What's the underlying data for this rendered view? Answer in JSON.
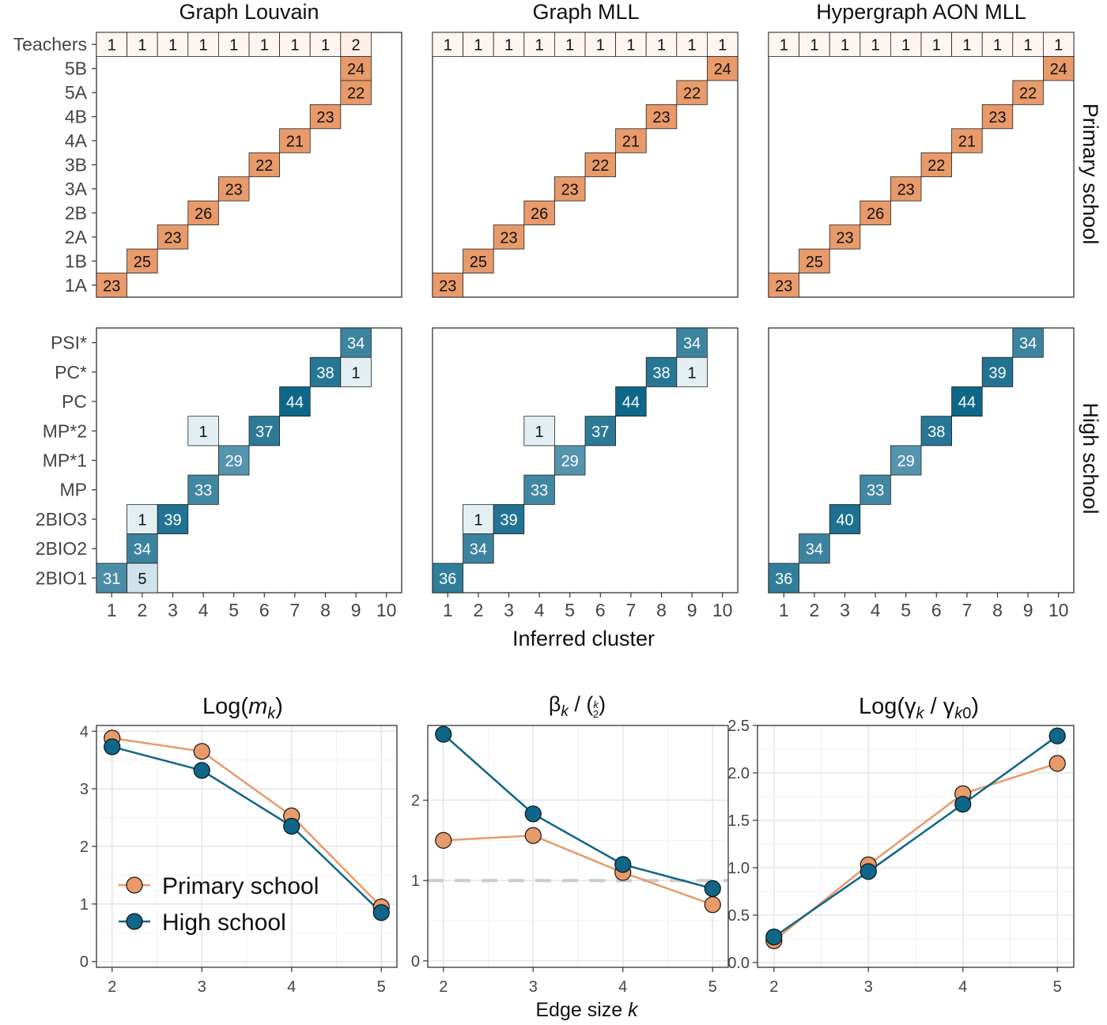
{
  "figure": {
    "top_x_label": "Inferred cluster",
    "bottom_x_label": "Edge size k"
  },
  "colors": {
    "primary": "#E89A6A",
    "high": "#0E6688",
    "panel_border": "#333333",
    "grid": "#E6E6E6",
    "reference_line": "#CCCCCC"
  },
  "chart_data": [
    {
      "type": "heatmap",
      "title": "Graph Louvain",
      "x_label": "Inferred cluster",
      "x_categories": [
        "1",
        "2",
        "3",
        "4",
        "5",
        "6",
        "7",
        "8",
        "9",
        "10"
      ],
      "rows": {
        "primary": [
          {
            "label": "Teachers",
            "cells": [
              [
                1,
                1
              ],
              [
                2,
                1
              ],
              [
                3,
                1
              ],
              [
                4,
                1
              ],
              [
                5,
                1
              ],
              [
                6,
                1
              ],
              [
                7,
                1
              ],
              [
                8,
                1
              ],
              [
                9,
                2
              ]
            ]
          },
          {
            "label": "5B",
            "cells": [
              [
                9,
                24
              ]
            ]
          },
          {
            "label": "5A",
            "cells": [
              [
                9,
                22
              ]
            ]
          },
          {
            "label": "4B",
            "cells": [
              [
                8,
                23
              ]
            ]
          },
          {
            "label": "4A",
            "cells": [
              [
                7,
                21
              ]
            ]
          },
          {
            "label": "3B",
            "cells": [
              [
                6,
                22
              ]
            ]
          },
          {
            "label": "3A",
            "cells": [
              [
                5,
                23
              ]
            ]
          },
          {
            "label": "2B",
            "cells": [
              [
                4,
                26
              ]
            ]
          },
          {
            "label": "2A",
            "cells": [
              [
                3,
                23
              ]
            ]
          },
          {
            "label": "1B",
            "cells": [
              [
                2,
                25
              ]
            ]
          },
          {
            "label": "1A",
            "cells": [
              [
                1,
                23
              ]
            ]
          }
        ],
        "high": [
          {
            "label": "PSI*",
            "cells": [
              [
                9,
                34
              ]
            ]
          },
          {
            "label": "PC*",
            "cells": [
              [
                8,
                38
              ],
              [
                9,
                1
              ]
            ]
          },
          {
            "label": "PC",
            "cells": [
              [
                7,
                44
              ]
            ]
          },
          {
            "label": "MP*2",
            "cells": [
              [
                4,
                1
              ],
              [
                6,
                37
              ]
            ]
          },
          {
            "label": "MP*1",
            "cells": [
              [
                5,
                29
              ]
            ]
          },
          {
            "label": "MP",
            "cells": [
              [
                4,
                33
              ]
            ]
          },
          {
            "label": "2BIO3",
            "cells": [
              [
                2,
                1
              ],
              [
                3,
                39
              ]
            ]
          },
          {
            "label": "2BIO2",
            "cells": [
              [
                2,
                34
              ]
            ]
          },
          {
            "label": "2BIO1",
            "cells": [
              [
                1,
                31
              ],
              [
                2,
                5
              ]
            ]
          }
        ]
      }
    },
    {
      "type": "heatmap",
      "title": "Graph MLL",
      "x_label": "Inferred cluster",
      "x_categories": [
        "1",
        "2",
        "3",
        "4",
        "5",
        "6",
        "7",
        "8",
        "9",
        "10"
      ],
      "rows": {
        "primary": [
          {
            "label": "Teachers",
            "cells": [
              [
                1,
                1
              ],
              [
                2,
                1
              ],
              [
                3,
                1
              ],
              [
                4,
                1
              ],
              [
                5,
                1
              ],
              [
                6,
                1
              ],
              [
                7,
                1
              ],
              [
                8,
                1
              ],
              [
                9,
                1
              ],
              [
                10,
                1
              ]
            ]
          },
          {
            "label": "5B",
            "cells": [
              [
                10,
                24
              ]
            ]
          },
          {
            "label": "5A",
            "cells": [
              [
                9,
                22
              ]
            ]
          },
          {
            "label": "4B",
            "cells": [
              [
                8,
                23
              ]
            ]
          },
          {
            "label": "4A",
            "cells": [
              [
                7,
                21
              ]
            ]
          },
          {
            "label": "3B",
            "cells": [
              [
                6,
                22
              ]
            ]
          },
          {
            "label": "3A",
            "cells": [
              [
                5,
                23
              ]
            ]
          },
          {
            "label": "2B",
            "cells": [
              [
                4,
                26
              ]
            ]
          },
          {
            "label": "2A",
            "cells": [
              [
                3,
                23
              ]
            ]
          },
          {
            "label": "1B",
            "cells": [
              [
                2,
                25
              ]
            ]
          },
          {
            "label": "1A",
            "cells": [
              [
                1,
                23
              ]
            ]
          }
        ],
        "high": [
          {
            "label": "PSI*",
            "cells": [
              [
                9,
                34
              ]
            ]
          },
          {
            "label": "PC*",
            "cells": [
              [
                8,
                38
              ],
              [
                9,
                1
              ]
            ]
          },
          {
            "label": "PC",
            "cells": [
              [
                7,
                44
              ]
            ]
          },
          {
            "label": "MP*2",
            "cells": [
              [
                4,
                1
              ],
              [
                6,
                37
              ]
            ]
          },
          {
            "label": "MP*1",
            "cells": [
              [
                5,
                29
              ]
            ]
          },
          {
            "label": "MP",
            "cells": [
              [
                4,
                33
              ]
            ]
          },
          {
            "label": "2BIO3",
            "cells": [
              [
                2,
                1
              ],
              [
                3,
                39
              ]
            ]
          },
          {
            "label": "2BIO2",
            "cells": [
              [
                2,
                34
              ]
            ]
          },
          {
            "label": "2BIO1",
            "cells": [
              [
                1,
                36
              ]
            ]
          }
        ]
      }
    },
    {
      "type": "heatmap",
      "title": "Hypergraph AON MLL",
      "x_label": "Inferred cluster",
      "x_categories": [
        "1",
        "2",
        "3",
        "4",
        "5",
        "6",
        "7",
        "8",
        "9",
        "10"
      ],
      "rows": {
        "primary": [
          {
            "label": "Teachers",
            "cells": [
              [
                1,
                1
              ],
              [
                2,
                1
              ],
              [
                3,
                1
              ],
              [
                4,
                1
              ],
              [
                5,
                1
              ],
              [
                6,
                1
              ],
              [
                7,
                1
              ],
              [
                8,
                1
              ],
              [
                9,
                1
              ],
              [
                10,
                1
              ]
            ]
          },
          {
            "label": "5B",
            "cells": [
              [
                10,
                24
              ]
            ]
          },
          {
            "label": "5A",
            "cells": [
              [
                9,
                22
              ]
            ]
          },
          {
            "label": "4B",
            "cells": [
              [
                8,
                23
              ]
            ]
          },
          {
            "label": "4A",
            "cells": [
              [
                7,
                21
              ]
            ]
          },
          {
            "label": "3B",
            "cells": [
              [
                6,
                22
              ]
            ]
          },
          {
            "label": "3A",
            "cells": [
              [
                5,
                23
              ]
            ]
          },
          {
            "label": "2B",
            "cells": [
              [
                4,
                26
              ]
            ]
          },
          {
            "label": "2A",
            "cells": [
              [
                3,
                23
              ]
            ]
          },
          {
            "label": "1B",
            "cells": [
              [
                2,
                25
              ]
            ]
          },
          {
            "label": "1A",
            "cells": [
              [
                1,
                23
              ]
            ]
          }
        ],
        "high": [
          {
            "label": "PSI*",
            "cells": [
              [
                9,
                34
              ]
            ]
          },
          {
            "label": "PC*",
            "cells": [
              [
                8,
                39
              ]
            ]
          },
          {
            "label": "PC",
            "cells": [
              [
                7,
                44
              ]
            ]
          },
          {
            "label": "MP*2",
            "cells": [
              [
                6,
                38
              ]
            ]
          },
          {
            "label": "MP*1",
            "cells": [
              [
                5,
                29
              ]
            ]
          },
          {
            "label": "MP",
            "cells": [
              [
                4,
                33
              ]
            ]
          },
          {
            "label": "2BIO3",
            "cells": [
              [
                3,
                40
              ]
            ]
          },
          {
            "label": "2BIO2",
            "cells": [
              [
                2,
                34
              ]
            ]
          },
          {
            "label": "2BIO1",
            "cells": [
              [
                1,
                36
              ]
            ]
          }
        ]
      },
      "facet_labels": {
        "primary": "Primary school",
        "high": "High school"
      }
    },
    {
      "type": "line",
      "title": "Log(m_k)",
      "x": [
        2,
        3,
        4,
        5
      ],
      "xlabel": "",
      "ylim": [
        -0.1,
        4.1
      ],
      "yticks": [
        0,
        1,
        2,
        3,
        4
      ],
      "ytick_labels": [
        "0",
        "1",
        "2",
        "3",
        "4"
      ],
      "series": [
        {
          "name": "Primary school",
          "values": [
            3.88,
            3.65,
            2.53,
            0.95
          ]
        },
        {
          "name": "High school",
          "values": [
            3.73,
            3.32,
            2.35,
            0.85
          ]
        }
      ],
      "legend": {
        "placement": "bottom-left",
        "entries": [
          "Primary school",
          "High school"
        ]
      }
    },
    {
      "type": "line",
      "title": "β_k / (k choose 2)",
      "x": [
        2,
        3,
        4,
        5
      ],
      "xlabel": "Edge size k",
      "ylim": [
        -0.08,
        2.93
      ],
      "yticks": [
        0,
        1,
        2
      ],
      "ytick_labels": [
        "0",
        "1",
        "2"
      ],
      "reference_line": 1,
      "series": [
        {
          "name": "Primary school",
          "values": [
            1.5,
            1.56,
            1.1,
            0.7
          ]
        },
        {
          "name": "High school",
          "values": [
            2.82,
            1.83,
            1.2,
            0.9
          ]
        }
      ]
    },
    {
      "type": "line",
      "title": "Log(γ_k / γ_k0)",
      "x": [
        2,
        3,
        4,
        5
      ],
      "xlabel": "",
      "ylim": [
        -0.05,
        2.5
      ],
      "yticks": [
        0,
        0.5,
        1,
        1.5,
        2,
        2.5
      ],
      "ytick_labels": [
        "0.0",
        "0.5",
        "1.0",
        "1.5",
        "2.0",
        "2.5"
      ],
      "series": [
        {
          "name": "Primary school",
          "values": [
            0.23,
            1.03,
            1.78,
            2.1
          ]
        },
        {
          "name": "High school",
          "values": [
            0.27,
            0.96,
            1.67,
            2.39
          ]
        }
      ]
    }
  ]
}
